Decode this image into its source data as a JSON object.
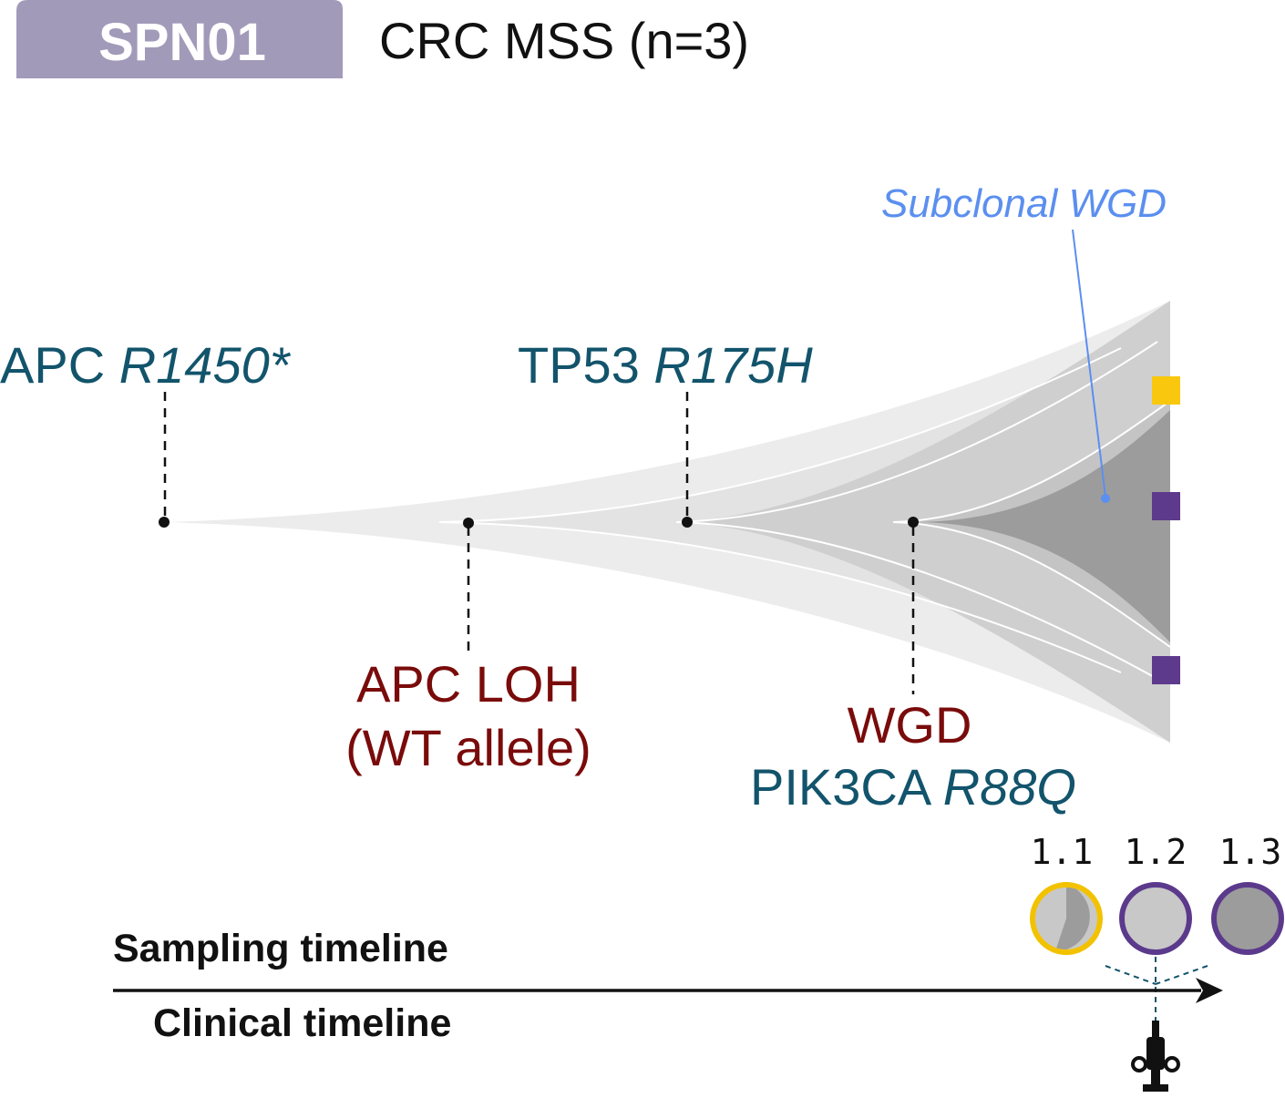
{
  "header": {
    "patient_badge": "SPN01",
    "cohort_label": "CRC MSS (n=3)"
  },
  "annotations": {
    "apc_gene": "APC",
    "apc_mutation": "R1450*",
    "tp53_gene": "TP53",
    "tp53_mutation": "R175H",
    "apc_loh_line1": "APC LOH",
    "apc_loh_line2": "(WT allele)",
    "wgd": "WGD",
    "pik3ca_gene": "PIK3CA",
    "pik3ca_mutation": "R88Q",
    "subclonal_wgd": "Subclonal WGD"
  },
  "samples": [
    {
      "id": "1.1",
      "ring_color": "#f2c200",
      "clonal_fraction": 0.55
    },
    {
      "id": "1.2",
      "ring_color": "#5b3a8c",
      "clonal_fraction": 0.0
    },
    {
      "id": "1.3",
      "ring_color": "#5b3a8c",
      "clonal_fraction": 1.0
    }
  ],
  "timeline": {
    "sampling_label": "Sampling timeline",
    "clinical_label": "Clinical timeline",
    "event_icon": "surgery-syringe-icon"
  },
  "colors": {
    "badge_bg": "#a29ab9",
    "mutation_text": "#12546b",
    "event_text": "#7a0b0b",
    "subclonal_text": "#5b8ff0",
    "marker_yellow": "#f9c80e",
    "marker_purple": "#5e3a8c"
  }
}
